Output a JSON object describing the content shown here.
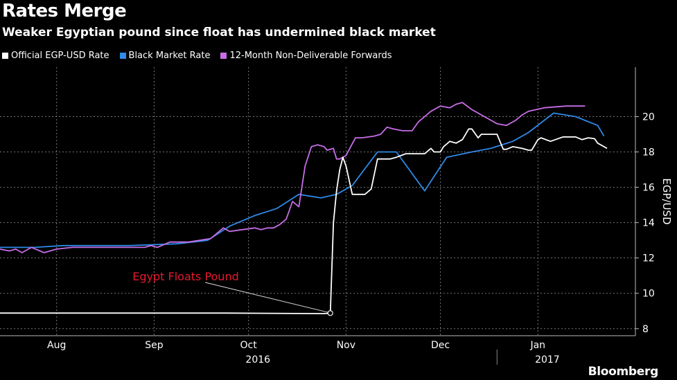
{
  "title": "Rates Merge",
  "subtitle": "Weaker Egyptian pound since float has undermined black market",
  "brand": "Bloomberg",
  "colors": {
    "official": "#ffffff",
    "black_market": "#2f8ae8",
    "ndf": "#c86ee8",
    "annotation": "#e8192c",
    "grid": "#777777"
  },
  "chart_data": {
    "type": "line",
    "title": "Rates Merge",
    "subtitle": "Weaker Egyptian pound since float has undermined black market",
    "ylabel": "EGP/USD",
    "ylim": [
      7.6,
      22.8
    ],
    "yticks": [
      8,
      10,
      12,
      14,
      16,
      18,
      20
    ],
    "xlim": [
      "2016-07-21",
      "2017-02-08"
    ],
    "xticks": [
      {
        "label": "Aug",
        "date": "2016-08-08"
      },
      {
        "label": "Sep",
        "date": "2016-09-08"
      },
      {
        "label": "Oct",
        "date": "2016-10-08"
      },
      {
        "label": "Nov",
        "date": "2016-11-08"
      },
      {
        "label": "Dec",
        "date": "2016-12-08"
      },
      {
        "label": "Jan",
        "date": "2017-01-08"
      }
    ],
    "year_labels": [
      {
        "label": "2016",
        "date": "2016-10-11"
      },
      {
        "label": "2017",
        "date": "2017-01-11"
      }
    ],
    "year_separator": "2016-12-26",
    "grid": true,
    "legend_position": "top-left",
    "annotation": {
      "text": "Egypt Floats Pound",
      "date": "2016-11-03",
      "value": 8.88
    },
    "series": [
      {
        "name": "Official EGP-USD Rate",
        "color": "#ffffff",
        "x": [
          "2016-07-21",
          "2016-10-01",
          "2016-11-01",
          "2016-11-03",
          "2016-11-04",
          "2016-11-05",
          "2016-11-06",
          "2016-11-07",
          "2016-11-08",
          "2016-11-10",
          "2016-11-14",
          "2016-11-16",
          "2016-11-18",
          "2016-11-22",
          "2016-11-24",
          "2016-11-27",
          "2016-11-29",
          "2016-12-01",
          "2016-12-03",
          "2016-12-05",
          "2016-12-06",
          "2016-12-08",
          "2016-12-09",
          "2016-12-11",
          "2016-12-13",
          "2016-12-15",
          "2016-12-17",
          "2016-12-18",
          "2016-12-20",
          "2016-12-21",
          "2016-12-23",
          "2016-12-26",
          "2016-12-28",
          "2016-12-29",
          "2016-12-31",
          "2017-01-03",
          "2017-01-05",
          "2017-01-06",
          "2017-01-08",
          "2017-01-09",
          "2017-01-12",
          "2017-01-16",
          "2017-01-19",
          "2017-01-20",
          "2017-01-22",
          "2017-01-24",
          "2017-01-26",
          "2017-01-27",
          "2017-01-30"
        ],
        "values": [
          8.88,
          8.88,
          8.85,
          8.88,
          14.0,
          15.8,
          17.0,
          17.7,
          17.2,
          15.6,
          15.6,
          15.9,
          17.6,
          17.6,
          17.7,
          17.9,
          17.9,
          17.9,
          17.9,
          18.2,
          18.0,
          18.0,
          18.3,
          18.6,
          18.5,
          18.7,
          19.3,
          19.3,
          18.8,
          19.0,
          19.0,
          19.0,
          18.15,
          18.15,
          18.3,
          18.2,
          18.1,
          18.1,
          18.7,
          18.8,
          18.6,
          18.85,
          18.85,
          18.85,
          18.7,
          18.8,
          18.75,
          18.5,
          18.2
        ]
      },
      {
        "name": "Black Market Rate",
        "color": "#2f8ae8",
        "x": [
          "2016-07-21",
          "2016-08-01",
          "2016-08-10",
          "2016-08-31",
          "2016-09-15",
          "2016-09-25",
          "2016-10-02",
          "2016-10-06",
          "2016-10-10",
          "2016-10-17",
          "2016-10-24",
          "2016-10-31",
          "2016-11-05",
          "2016-11-10",
          "2016-11-18",
          "2016-11-24",
          "2016-12-03",
          "2016-12-10",
          "2016-12-18",
          "2016-12-24",
          "2016-12-31",
          "2017-01-05",
          "2017-01-13",
          "2017-01-20",
          "2017-01-27",
          "2017-01-29"
        ],
        "values": [
          12.6,
          12.6,
          12.7,
          12.7,
          12.8,
          13.0,
          13.8,
          14.1,
          14.4,
          14.8,
          15.6,
          15.4,
          15.6,
          16.1,
          18.0,
          18.0,
          15.8,
          17.7,
          18.0,
          18.2,
          18.6,
          19.1,
          20.2,
          20.0,
          19.5,
          18.9
        ]
      },
      {
        "name": "12-Month Non-Deliverable Forwards",
        "color": "#c86ee8",
        "x": [
          "2016-07-21",
          "2016-07-24",
          "2016-07-26",
          "2016-07-28",
          "2016-07-31",
          "2016-08-04",
          "2016-08-08",
          "2016-08-13",
          "2016-08-19",
          "2016-08-25",
          "2016-09-05",
          "2016-09-07",
          "2016-09-09",
          "2016-09-13",
          "2016-09-19",
          "2016-09-26",
          "2016-09-30",
          "2016-10-02",
          "2016-10-06",
          "2016-10-10",
          "2016-10-12",
          "2016-10-14",
          "2016-10-16",
          "2016-10-18",
          "2016-10-20",
          "2016-10-22",
          "2016-10-24",
          "2016-10-26",
          "2016-10-28",
          "2016-10-30",
          "2016-11-01",
          "2016-11-02",
          "2016-11-04",
          "2016-11-05",
          "2016-11-06",
          "2016-11-07",
          "2016-11-08",
          "2016-11-11",
          "2016-11-13",
          "2016-11-17",
          "2016-11-19",
          "2016-11-21",
          "2016-11-23",
          "2016-11-26",
          "2016-11-29",
          "2016-12-01",
          "2016-12-05",
          "2016-12-08",
          "2016-12-11",
          "2016-12-13",
          "2016-12-15",
          "2016-12-18",
          "2016-12-20",
          "2016-12-24",
          "2016-12-26",
          "2016-12-29",
          "2017-01-01",
          "2017-01-03",
          "2017-01-05",
          "2017-01-10",
          "2017-01-17",
          "2017-01-19",
          "2017-01-21",
          "2017-01-23"
        ],
        "values": [
          12.5,
          12.4,
          12.5,
          12.3,
          12.6,
          12.3,
          12.5,
          12.6,
          12.6,
          12.6,
          12.6,
          12.7,
          12.6,
          12.9,
          12.9,
          13.1,
          13.7,
          13.5,
          13.6,
          13.7,
          13.6,
          13.7,
          13.7,
          13.9,
          14.2,
          15.2,
          14.9,
          17.2,
          18.3,
          18.4,
          18.3,
          18.1,
          18.2,
          17.6,
          17.6,
          17.7,
          17.8,
          18.8,
          18.8,
          18.9,
          19.0,
          19.4,
          19.3,
          19.2,
          19.2,
          19.7,
          20.3,
          20.6,
          20.5,
          20.7,
          20.8,
          20.4,
          20.2,
          19.8,
          19.6,
          19.5,
          19.8,
          20.1,
          20.3,
          20.5,
          20.6,
          20.6,
          20.6,
          20.6
        ]
      }
    ]
  }
}
